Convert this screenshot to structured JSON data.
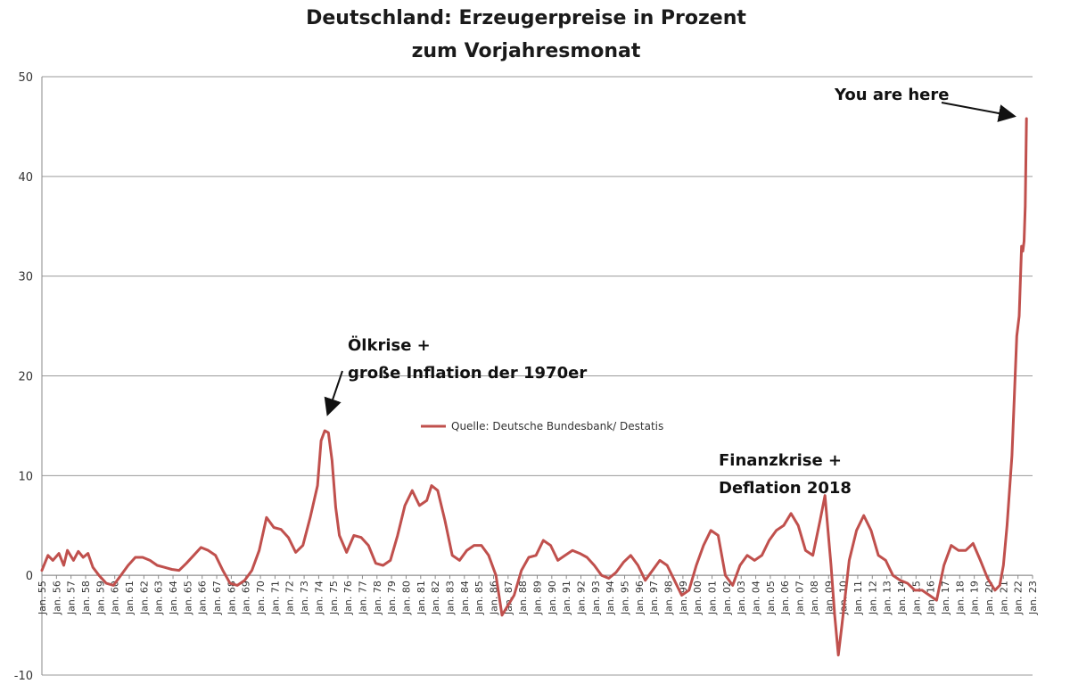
{
  "chart_data": {
    "type": "line",
    "title_line1": "Deutschland: Erzeugerpreise  in Prozent",
    "title_line2": "zum Vorjahresmonat",
    "xlabel": "",
    "ylabel": "",
    "ylim": [
      -10,
      50
    ],
    "yticks": [
      -10,
      0,
      10,
      20,
      30,
      40,
      50
    ],
    "xlim": [
      "1955-01",
      "2023-01"
    ],
    "grid": "horizontal",
    "legend_position": "center",
    "x_tick_labels": [
      "Jan. 55",
      "Jan. 56",
      "Jan. 57",
      "Jan. 58",
      "Jan. 59",
      "Jan. 60",
      "Jan. 61",
      "Jan. 62",
      "Jan. 63",
      "Jan. 64",
      "Jan. 65",
      "Jan. 66",
      "Jan. 67",
      "Jan. 68",
      "Jan. 69",
      "Jan. 70",
      "Jan. 71",
      "Jan. 72",
      "Jan. 73",
      "Jan. 74",
      "Jan. 75",
      "Jan. 76",
      "Jan. 77",
      "Jan. 78",
      "Jan. 79",
      "Jan. 80",
      "Jan. 81",
      "Jan. 82",
      "Jan. 83",
      "Jan. 84",
      "Jan. 85",
      "Jan. 86",
      "Jan. 87",
      "Jan. 88",
      "Jan. 89",
      "Jan. 90",
      "Jan. 91",
      "Jan. 92",
      "Jan. 93",
      "Jan. 94",
      "Jan. 95",
      "Jan. 96",
      "Jan. 97",
      "Jan. 98",
      "Jan. 99",
      "Jan. 00",
      "Jan. 01",
      "Jan. 02",
      "Jan. 03",
      "Jan. 04",
      "Jan. 05",
      "Jan. 06",
      "Jan. 07",
      "Jan. 08",
      "Jan. 09",
      "Jan. 10",
      "Jan. 11",
      "Jan. 12",
      "Jan. 13",
      "Jan. 14",
      "Jan. 15",
      "Jan. 16",
      "Jan. 17",
      "Jan. 18",
      "Jan. 19",
      "Jan. 20",
      "Jan. 21",
      "Jan. 22",
      "Jan. 23"
    ],
    "series": [
      {
        "name": "Quelle: Deutsche Bundesbank/ Destatis",
        "color": "#c0504d",
        "points": [
          [
            "1955-01",
            0.5
          ],
          [
            "1955-06",
            2.0
          ],
          [
            "1955-10",
            1.5
          ],
          [
            "1956-03",
            2.2
          ],
          [
            "1956-07",
            1.0
          ],
          [
            "1956-10",
            2.5
          ],
          [
            "1957-03",
            1.5
          ],
          [
            "1957-07",
            2.4
          ],
          [
            "1957-11",
            1.8
          ],
          [
            "1958-03",
            2.2
          ],
          [
            "1958-07",
            0.8
          ],
          [
            "1958-12",
            0.0
          ],
          [
            "1959-06",
            -0.8
          ],
          [
            "1959-12",
            -1.0
          ],
          [
            "1960-06",
            0.0
          ],
          [
            "1960-12",
            1.0
          ],
          [
            "1961-06",
            1.8
          ],
          [
            "1961-12",
            1.8
          ],
          [
            "1962-06",
            1.5
          ],
          [
            "1962-12",
            1.0
          ],
          [
            "1963-06",
            0.8
          ],
          [
            "1963-12",
            0.6
          ],
          [
            "1964-06",
            0.5
          ],
          [
            "1964-12",
            1.2
          ],
          [
            "1965-06",
            2.0
          ],
          [
            "1965-12",
            2.8
          ],
          [
            "1966-06",
            2.5
          ],
          [
            "1966-12",
            2.0
          ],
          [
            "1967-06",
            0.5
          ],
          [
            "1967-12",
            -0.8
          ],
          [
            "1968-06",
            -1.0
          ],
          [
            "1968-12",
            -0.5
          ],
          [
            "1969-06",
            0.5
          ],
          [
            "1969-12",
            2.5
          ],
          [
            "1970-06",
            5.8
          ],
          [
            "1970-12",
            4.8
          ],
          [
            "1971-06",
            4.6
          ],
          [
            "1971-12",
            3.8
          ],
          [
            "1972-06",
            2.3
          ],
          [
            "1972-12",
            3.0
          ],
          [
            "1973-06",
            5.8
          ],
          [
            "1973-12",
            9.0
          ],
          [
            "1974-03",
            13.5
          ],
          [
            "1974-06",
            14.5
          ],
          [
            "1974-09",
            14.3
          ],
          [
            "1974-12",
            11.5
          ],
          [
            "1975-03",
            6.8
          ],
          [
            "1975-06",
            4.0
          ],
          [
            "1975-12",
            2.3
          ],
          [
            "1976-06",
            4.0
          ],
          [
            "1976-12",
            3.8
          ],
          [
            "1977-06",
            3.0
          ],
          [
            "1977-12",
            1.2
          ],
          [
            "1978-06",
            1.0
          ],
          [
            "1978-12",
            1.5
          ],
          [
            "1979-06",
            4.0
          ],
          [
            "1979-12",
            7.0
          ],
          [
            "1980-06",
            8.5
          ],
          [
            "1980-12",
            7.0
          ],
          [
            "1981-06",
            7.5
          ],
          [
            "1981-10",
            9.0
          ],
          [
            "1982-03",
            8.5
          ],
          [
            "1982-09",
            5.5
          ],
          [
            "1983-03",
            2.0
          ],
          [
            "1983-09",
            1.5
          ],
          [
            "1984-03",
            2.5
          ],
          [
            "1984-09",
            3.0
          ],
          [
            "1985-03",
            3.0
          ],
          [
            "1985-09",
            2.0
          ],
          [
            "1986-03",
            0.0
          ],
          [
            "1986-08",
            -4.0
          ],
          [
            "1987-01",
            -3.0
          ],
          [
            "1987-06",
            -2.0
          ],
          [
            "1987-12",
            0.5
          ],
          [
            "1988-06",
            1.8
          ],
          [
            "1988-12",
            2.0
          ],
          [
            "1989-06",
            3.5
          ],
          [
            "1989-12",
            3.0
          ],
          [
            "1990-06",
            1.5
          ],
          [
            "1990-12",
            2.0
          ],
          [
            "1991-06",
            2.5
          ],
          [
            "1991-12",
            2.2
          ],
          [
            "1992-06",
            1.8
          ],
          [
            "1992-12",
            1.0
          ],
          [
            "1993-06",
            0.0
          ],
          [
            "1993-12",
            -0.3
          ],
          [
            "1994-06",
            0.3
          ],
          [
            "1994-12",
            1.3
          ],
          [
            "1995-06",
            2.0
          ],
          [
            "1995-12",
            1.0
          ],
          [
            "1996-06",
            -0.5
          ],
          [
            "1996-12",
            0.5
          ],
          [
            "1997-06",
            1.5
          ],
          [
            "1997-12",
            1.0
          ],
          [
            "1998-06",
            -0.5
          ],
          [
            "1998-12",
            -2.0
          ],
          [
            "1999-06",
            -1.5
          ],
          [
            "1999-12",
            1.0
          ],
          [
            "2000-06",
            3.0
          ],
          [
            "2000-12",
            4.5
          ],
          [
            "2001-06",
            4.0
          ],
          [
            "2001-12",
            0.0
          ],
          [
            "2002-06",
            -1.0
          ],
          [
            "2002-12",
            1.0
          ],
          [
            "2003-06",
            2.0
          ],
          [
            "2003-12",
            1.5
          ],
          [
            "2004-06",
            2.0
          ],
          [
            "2004-12",
            3.5
          ],
          [
            "2005-06",
            4.5
          ],
          [
            "2005-12",
            5.0
          ],
          [
            "2006-06",
            6.2
          ],
          [
            "2006-12",
            5.0
          ],
          [
            "2007-06",
            2.5
          ],
          [
            "2007-12",
            2.0
          ],
          [
            "2008-06",
            5.5
          ],
          [
            "2008-10",
            8.0
          ],
          [
            "2009-03",
            1.0
          ],
          [
            "2009-06",
            -4.0
          ],
          [
            "2009-09",
            -8.0
          ],
          [
            "2009-12",
            -5.0
          ],
          [
            "2010-06",
            1.5
          ],
          [
            "2010-12",
            4.5
          ],
          [
            "2011-06",
            6.0
          ],
          [
            "2011-12",
            4.5
          ],
          [
            "2012-06",
            2.0
          ],
          [
            "2012-12",
            1.5
          ],
          [
            "2013-06",
            0.0
          ],
          [
            "2013-12",
            -0.5
          ],
          [
            "2014-06",
            -0.8
          ],
          [
            "2014-12",
            -1.5
          ],
          [
            "2015-06",
            -1.5
          ],
          [
            "2015-12",
            -2.0
          ],
          [
            "2016-06",
            -2.5
          ],
          [
            "2016-12",
            1.0
          ],
          [
            "2017-06",
            3.0
          ],
          [
            "2017-12",
            2.5
          ],
          [
            "2018-06",
            2.5
          ],
          [
            "2018-12",
            3.2
          ],
          [
            "2019-06",
            1.5
          ],
          [
            "2019-12",
            -0.3
          ],
          [
            "2020-06",
            -1.5
          ],
          [
            "2020-10",
            -1.0
          ],
          [
            "2021-01",
            1.0
          ],
          [
            "2021-04",
            5.0
          ],
          [
            "2021-08",
            12.0
          ],
          [
            "2021-10",
            18.0
          ],
          [
            "2021-12",
            24.0
          ],
          [
            "2022-02",
            26.0
          ],
          [
            "2022-04",
            33.0
          ],
          [
            "2022-05",
            32.5
          ],
          [
            "2022-06",
            33.5
          ],
          [
            "2022-07",
            37.0
          ],
          [
            "2022-08",
            45.8
          ]
        ]
      }
    ],
    "annotations": [
      {
        "line1": "Ölkrise +",
        "line2": "große Inflation der 1970er"
      },
      {
        "line1": "Finanzkrise +",
        "line2": "Deflation 2018"
      },
      {
        "line1": "You are here"
      }
    ]
  }
}
